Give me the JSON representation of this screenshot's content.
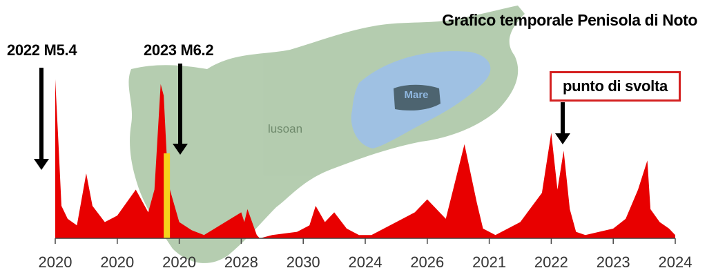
{
  "chart_data": {
    "type": "area",
    "title": "Grafico temporale Penisola di Noto",
    "xlabel": "",
    "ylabel": "",
    "x_ticks": [
      "2020",
      "2020",
      "2020",
      "2028",
      "2030",
      "2024",
      "2026",
      "2021",
      "2022",
      "2023",
      "2024"
    ],
    "grid": false,
    "legend": "none",
    "series_color": "#e80000",
    "highlight_color": "#f6d21c",
    "map_labels": {
      "land": "lusoan",
      "water": "Mare"
    },
    "annotations": [
      {
        "text": "2022 M5.4",
        "tick_position": 0
      },
      {
        "text": "2023 M6.2",
        "tick_position": 1.8
      },
      {
        "text": "punto di svolta",
        "tick_position": 7.35,
        "boxed": true
      }
    ],
    "x": [
      0,
      0.05,
      0.1,
      0.2,
      0.35,
      0.5,
      0.6,
      0.8,
      1.0,
      1.3,
      1.5,
      1.6,
      1.7,
      1.75,
      1.8,
      1.85,
      2.0,
      2.2,
      2.4,
      3.0,
      3.05,
      3.1,
      3.25,
      3.3,
      3.5,
      3.9,
      4.1,
      4.2,
      4.35,
      4.5,
      4.7,
      4.9,
      5.1,
      5.5,
      5.8,
      6.0,
      6.3,
      6.6,
      6.8,
      6.9,
      7.1,
      7.5,
      7.85,
      8.0,
      8.1,
      8.2,
      8.3,
      8.4,
      8.55,
      9.0,
      9.2,
      9.4,
      9.55,
      9.6,
      9.75,
      9.9,
      10.0
    ],
    "values": [
      98,
      60,
      20,
      12,
      8,
      40,
      20,
      10,
      14,
      30,
      16,
      30,
      95,
      88,
      50,
      30,
      10,
      5,
      2,
      16,
      10,
      18,
      2,
      0,
      2,
      4,
      8,
      20,
      10,
      16,
      6,
      2,
      2,
      10,
      16,
      24,
      12,
      58,
      22,
      6,
      2,
      10,
      28,
      65,
      30,
      54,
      18,
      4,
      2,
      6,
      12,
      30,
      48,
      18,
      10,
      6,
      2
    ],
    "ylim": [
      0,
      100
    ],
    "xlim": [
      0,
      10
    ],
    "highlight_range": [
      1.75,
      1.85
    ]
  }
}
